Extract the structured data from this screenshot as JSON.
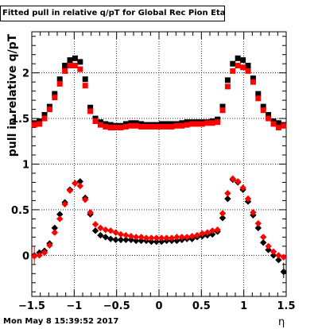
{
  "title": "Fitted pull in relative q/pT for Global Rec Pion EtapT",
  "footer": "Mon May  8 15:39:52 2017",
  "chart_data": {
    "type": "scatter",
    "title": "Fitted pull in relative q/pT for Global Rec Pion EtapT",
    "xlabel": "η",
    "ylabel": "pull in relative q/pT",
    "xlim": [
      -1.5,
      1.5
    ],
    "ylim": [
      -0.45,
      2.45
    ],
    "grid": true,
    "x_ticks": [
      "−1.5",
      "−1",
      "−0.5",
      "0",
      "0.5",
      "1",
      "1.5"
    ],
    "y_ticks": [
      "0",
      "0.5",
      "1",
      "1.5",
      "2"
    ],
    "x": [
      -1.47,
      -1.41,
      -1.35,
      -1.29,
      -1.23,
      -1.17,
      -1.11,
      -1.05,
      -0.99,
      -0.93,
      -0.87,
      -0.81,
      -0.75,
      -0.69,
      -0.63,
      -0.57,
      -0.51,
      -0.45,
      -0.39,
      -0.33,
      -0.27,
      -0.21,
      -0.15,
      -0.09,
      -0.03,
      0.03,
      0.09,
      0.15,
      0.21,
      0.27,
      0.33,
      0.39,
      0.45,
      0.51,
      0.57,
      0.63,
      0.69,
      0.75,
      0.81,
      0.87,
      0.93,
      0.99,
      1.05,
      1.11,
      1.17,
      1.23,
      1.29,
      1.35,
      1.41,
      1.47
    ],
    "series": [
      {
        "color": "#000000",
        "marker": "square",
        "values": [
          1.45,
          1.47,
          1.54,
          1.63,
          1.77,
          1.93,
          2.08,
          2.14,
          2.16,
          2.12,
          1.93,
          1.62,
          1.5,
          1.46,
          1.44,
          1.43,
          1.42,
          1.42,
          1.44,
          1.45,
          1.45,
          1.44,
          1.43,
          1.43,
          1.43,
          1.44,
          1.44,
          1.44,
          1.44,
          1.45,
          1.46,
          1.46,
          1.46,
          1.46,
          1.46,
          1.47,
          1.49,
          1.63,
          1.92,
          2.1,
          2.16,
          2.14,
          2.08,
          1.94,
          1.77,
          1.63,
          1.54,
          1.47,
          1.45,
          1.43
        ]
      },
      {
        "color": "#ff0000",
        "marker": "square",
        "values": [
          1.43,
          1.44,
          1.5,
          1.6,
          1.73,
          1.88,
          2.02,
          2.08,
          2.08,
          2.04,
          1.86,
          1.58,
          1.47,
          1.43,
          1.41,
          1.4,
          1.4,
          1.4,
          1.41,
          1.42,
          1.42,
          1.41,
          1.41,
          1.41,
          1.41,
          1.41,
          1.41,
          1.41,
          1.42,
          1.42,
          1.43,
          1.44,
          1.44,
          1.44,
          1.45,
          1.45,
          1.46,
          1.59,
          1.85,
          2.02,
          2.08,
          2.06,
          2.02,
          1.9,
          1.72,
          1.59,
          1.5,
          1.44,
          1.4,
          1.42
        ]
      },
      {
        "color": "#000000",
        "marker": "diamond",
        "values": [
          0.0,
          0.03,
          0.05,
          0.13,
          0.3,
          0.45,
          0.58,
          0.72,
          0.79,
          0.81,
          0.63,
          0.45,
          0.27,
          0.22,
          0.2,
          0.18,
          0.17,
          0.17,
          0.17,
          0.17,
          0.16,
          0.16,
          0.16,
          0.15,
          0.15,
          0.15,
          0.16,
          0.16,
          0.16,
          0.17,
          0.18,
          0.18,
          0.2,
          0.21,
          0.22,
          0.23,
          0.26,
          0.41,
          0.62,
          0.83,
          0.8,
          0.72,
          0.59,
          0.44,
          0.3,
          0.14,
          0.06,
          0.0,
          -0.05,
          -0.18
        ]
      },
      {
        "color": "#ff0000",
        "marker": "diamond",
        "values": [
          -0.01,
          0.0,
          0.03,
          0.11,
          0.25,
          0.4,
          0.56,
          0.71,
          0.79,
          0.76,
          0.61,
          0.47,
          0.34,
          0.3,
          0.28,
          0.27,
          0.25,
          0.23,
          0.22,
          0.21,
          0.2,
          0.2,
          0.19,
          0.19,
          0.19,
          0.19,
          0.19,
          0.19,
          0.2,
          0.2,
          0.2,
          0.21,
          0.22,
          0.24,
          0.25,
          0.27,
          0.28,
          0.46,
          0.68,
          0.84,
          0.81,
          0.74,
          0.62,
          0.47,
          0.35,
          0.2,
          0.1,
          0.04,
          0.0,
          -0.02
        ]
      }
    ]
  }
}
